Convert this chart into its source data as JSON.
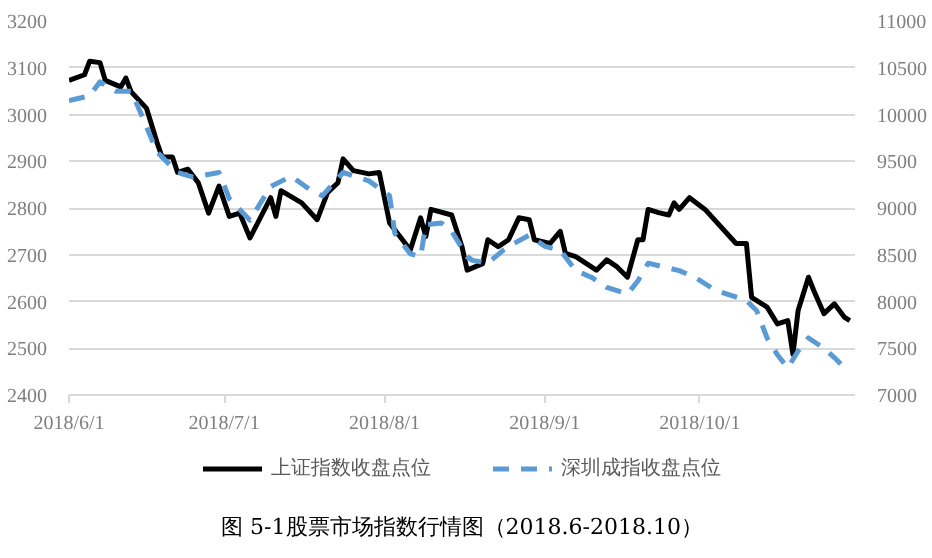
{
  "chart_data": {
    "type": "line",
    "title": "图 5-1股票市场指数行情图（2018.6-2018.10）",
    "xlim": [
      "2018-06-01",
      "2018-10-31"
    ],
    "xticks": [
      {
        "value": "2018-06-01",
        "label": "2018/6/1"
      },
      {
        "value": "2018-07-01",
        "label": "2018/7/1"
      },
      {
        "value": "2018-08-01",
        "label": "2018/8/1"
      },
      {
        "value": "2018-09-01",
        "label": "2018/9/1"
      },
      {
        "value": "2018-10-01",
        "label": "2018/10/1"
      }
    ],
    "ylim": [
      2400,
      3200
    ],
    "yticks": [
      2400,
      2500,
      2600,
      2700,
      2800,
      2900,
      3000,
      3100,
      3200
    ],
    "y2lim": [
      7000,
      11000
    ],
    "y2ticks": [
      7000,
      7500,
      8000,
      8500,
      9000,
      9500,
      10000,
      10500,
      11000
    ],
    "grid": "y",
    "legend": "bottom",
    "series": [
      {
        "name": "上证指数收盘点位",
        "color": "#000000",
        "line_style": "solid",
        "x": [
          "2018-06-01",
          "2018-06-04",
          "2018-06-05",
          "2018-06-07",
          "2018-06-08",
          "2018-06-11",
          "2018-06-12",
          "2018-06-13",
          "2018-06-16",
          "2018-06-18",
          "2018-06-19",
          "2018-06-21",
          "2018-06-22",
          "2018-06-24",
          "2018-06-26",
          "2018-06-28",
          "2018-06-30",
          "2018-07-02",
          "2018-07-04",
          "2018-07-06",
          "2018-07-10",
          "2018-07-11",
          "2018-07-12",
          "2018-07-16",
          "2018-07-19",
          "2018-07-21",
          "2018-07-23",
          "2018-07-24",
          "2018-07-26",
          "2018-07-29",
          "2018-07-31",
          "2018-08-02",
          "2018-08-06",
          "2018-08-08",
          "2018-08-09",
          "2018-08-10",
          "2018-08-14",
          "2018-08-16",
          "2018-08-17",
          "2018-08-20",
          "2018-08-21",
          "2018-08-23",
          "2018-08-25",
          "2018-08-27",
          "2018-08-29",
          "2018-08-30",
          "2018-09-02",
          "2018-09-04",
          "2018-09-05",
          "2018-09-07",
          "2018-09-11",
          "2018-09-13",
          "2018-09-15",
          "2018-09-17",
          "2018-09-19",
          "2018-09-20",
          "2018-09-21",
          "2018-09-23",
          "2018-09-25",
          "2018-09-26",
          "2018-09-27",
          "2018-09-29",
          "2018-10-02",
          "2018-10-08",
          "2018-10-10",
          "2018-10-11",
          "2018-10-12",
          "2018-10-14",
          "2018-10-16",
          "2018-10-18",
          "2018-10-19",
          "2018-10-20",
          "2018-10-22",
          "2018-10-23",
          "2018-10-25",
          "2018-10-27",
          "2018-10-29",
          "2018-10-30"
        ],
        "values": [
          3073,
          3085,
          3114,
          3111,
          3073,
          3059,
          3078,
          3049,
          3013,
          2941,
          2909,
          2909,
          2876,
          2883,
          2854,
          2789,
          2847,
          2782,
          2789,
          2736,
          2822,
          2782,
          2837,
          2811,
          2775,
          2833,
          2854,
          2905,
          2880,
          2873,
          2876,
          2768,
          2710,
          2779,
          2739,
          2797,
          2785,
          2717,
          2667,
          2681,
          2732,
          2717,
          2732,
          2779,
          2775,
          2732,
          2724,
          2750,
          2703,
          2696,
          2667,
          2689,
          2674,
          2652,
          2732,
          2732,
          2797,
          2790,
          2785,
          2811,
          2797,
          2822,
          2797,
          2724,
          2724,
          2609,
          2602,
          2588,
          2552,
          2559,
          2487,
          2581,
          2652,
          2624,
          2574,
          2595,
          2566,
          2559
        ]
      },
      {
        "name": "深圳成指收盘点位",
        "color": "#5b9bd5",
        "line_style": "dashed",
        "axis": "y2",
        "x": [
          "2018-06-01",
          "2018-06-05",
          "2018-06-07",
          "2018-06-10",
          "2018-06-13",
          "2018-06-15",
          "2018-06-18",
          "2018-06-22",
          "2018-06-25",
          "2018-06-30",
          "2018-07-02",
          "2018-07-06",
          "2018-07-10",
          "2018-07-14",
          "2018-07-18",
          "2018-07-20",
          "2018-07-24",
          "2018-07-29",
          "2018-08-02",
          "2018-08-03",
          "2018-08-06",
          "2018-08-08",
          "2018-08-09",
          "2018-08-12",
          "2018-08-14",
          "2018-08-17",
          "2018-08-18",
          "2018-08-21",
          "2018-08-24",
          "2018-08-26",
          "2018-08-29",
          "2018-09-01",
          "2018-09-04",
          "2018-09-07",
          "2018-09-10",
          "2018-09-13",
          "2018-09-17",
          "2018-09-19",
          "2018-09-21",
          "2018-09-24",
          "2018-09-27",
          "2018-09-30",
          "2018-10-04",
          "2018-10-10",
          "2018-10-12",
          "2018-10-14",
          "2018-10-16",
          "2018-10-18",
          "2018-10-20",
          "2018-10-22",
          "2018-10-25",
          "2018-10-27",
          "2018-10-29"
        ],
        "values": [
          10150,
          10200,
          10350,
          10250,
          10250,
          10000,
          9600,
          9380,
          9330,
          9380,
          9100,
          8870,
          9230,
          9340,
          9180,
          9130,
          9380,
          9290,
          9130,
          8730,
          8510,
          8480,
          8820,
          8840,
          8750,
          8480,
          8440,
          8410,
          8550,
          8620,
          8710,
          8590,
          8550,
          8330,
          8260,
          8150,
          8080,
          8220,
          8410,
          8370,
          8330,
          8260,
          8120,
          8010,
          7900,
          7610,
          7430,
          7290,
          7470,
          7610,
          7500,
          7400,
          7290
        ]
      }
    ]
  }
}
